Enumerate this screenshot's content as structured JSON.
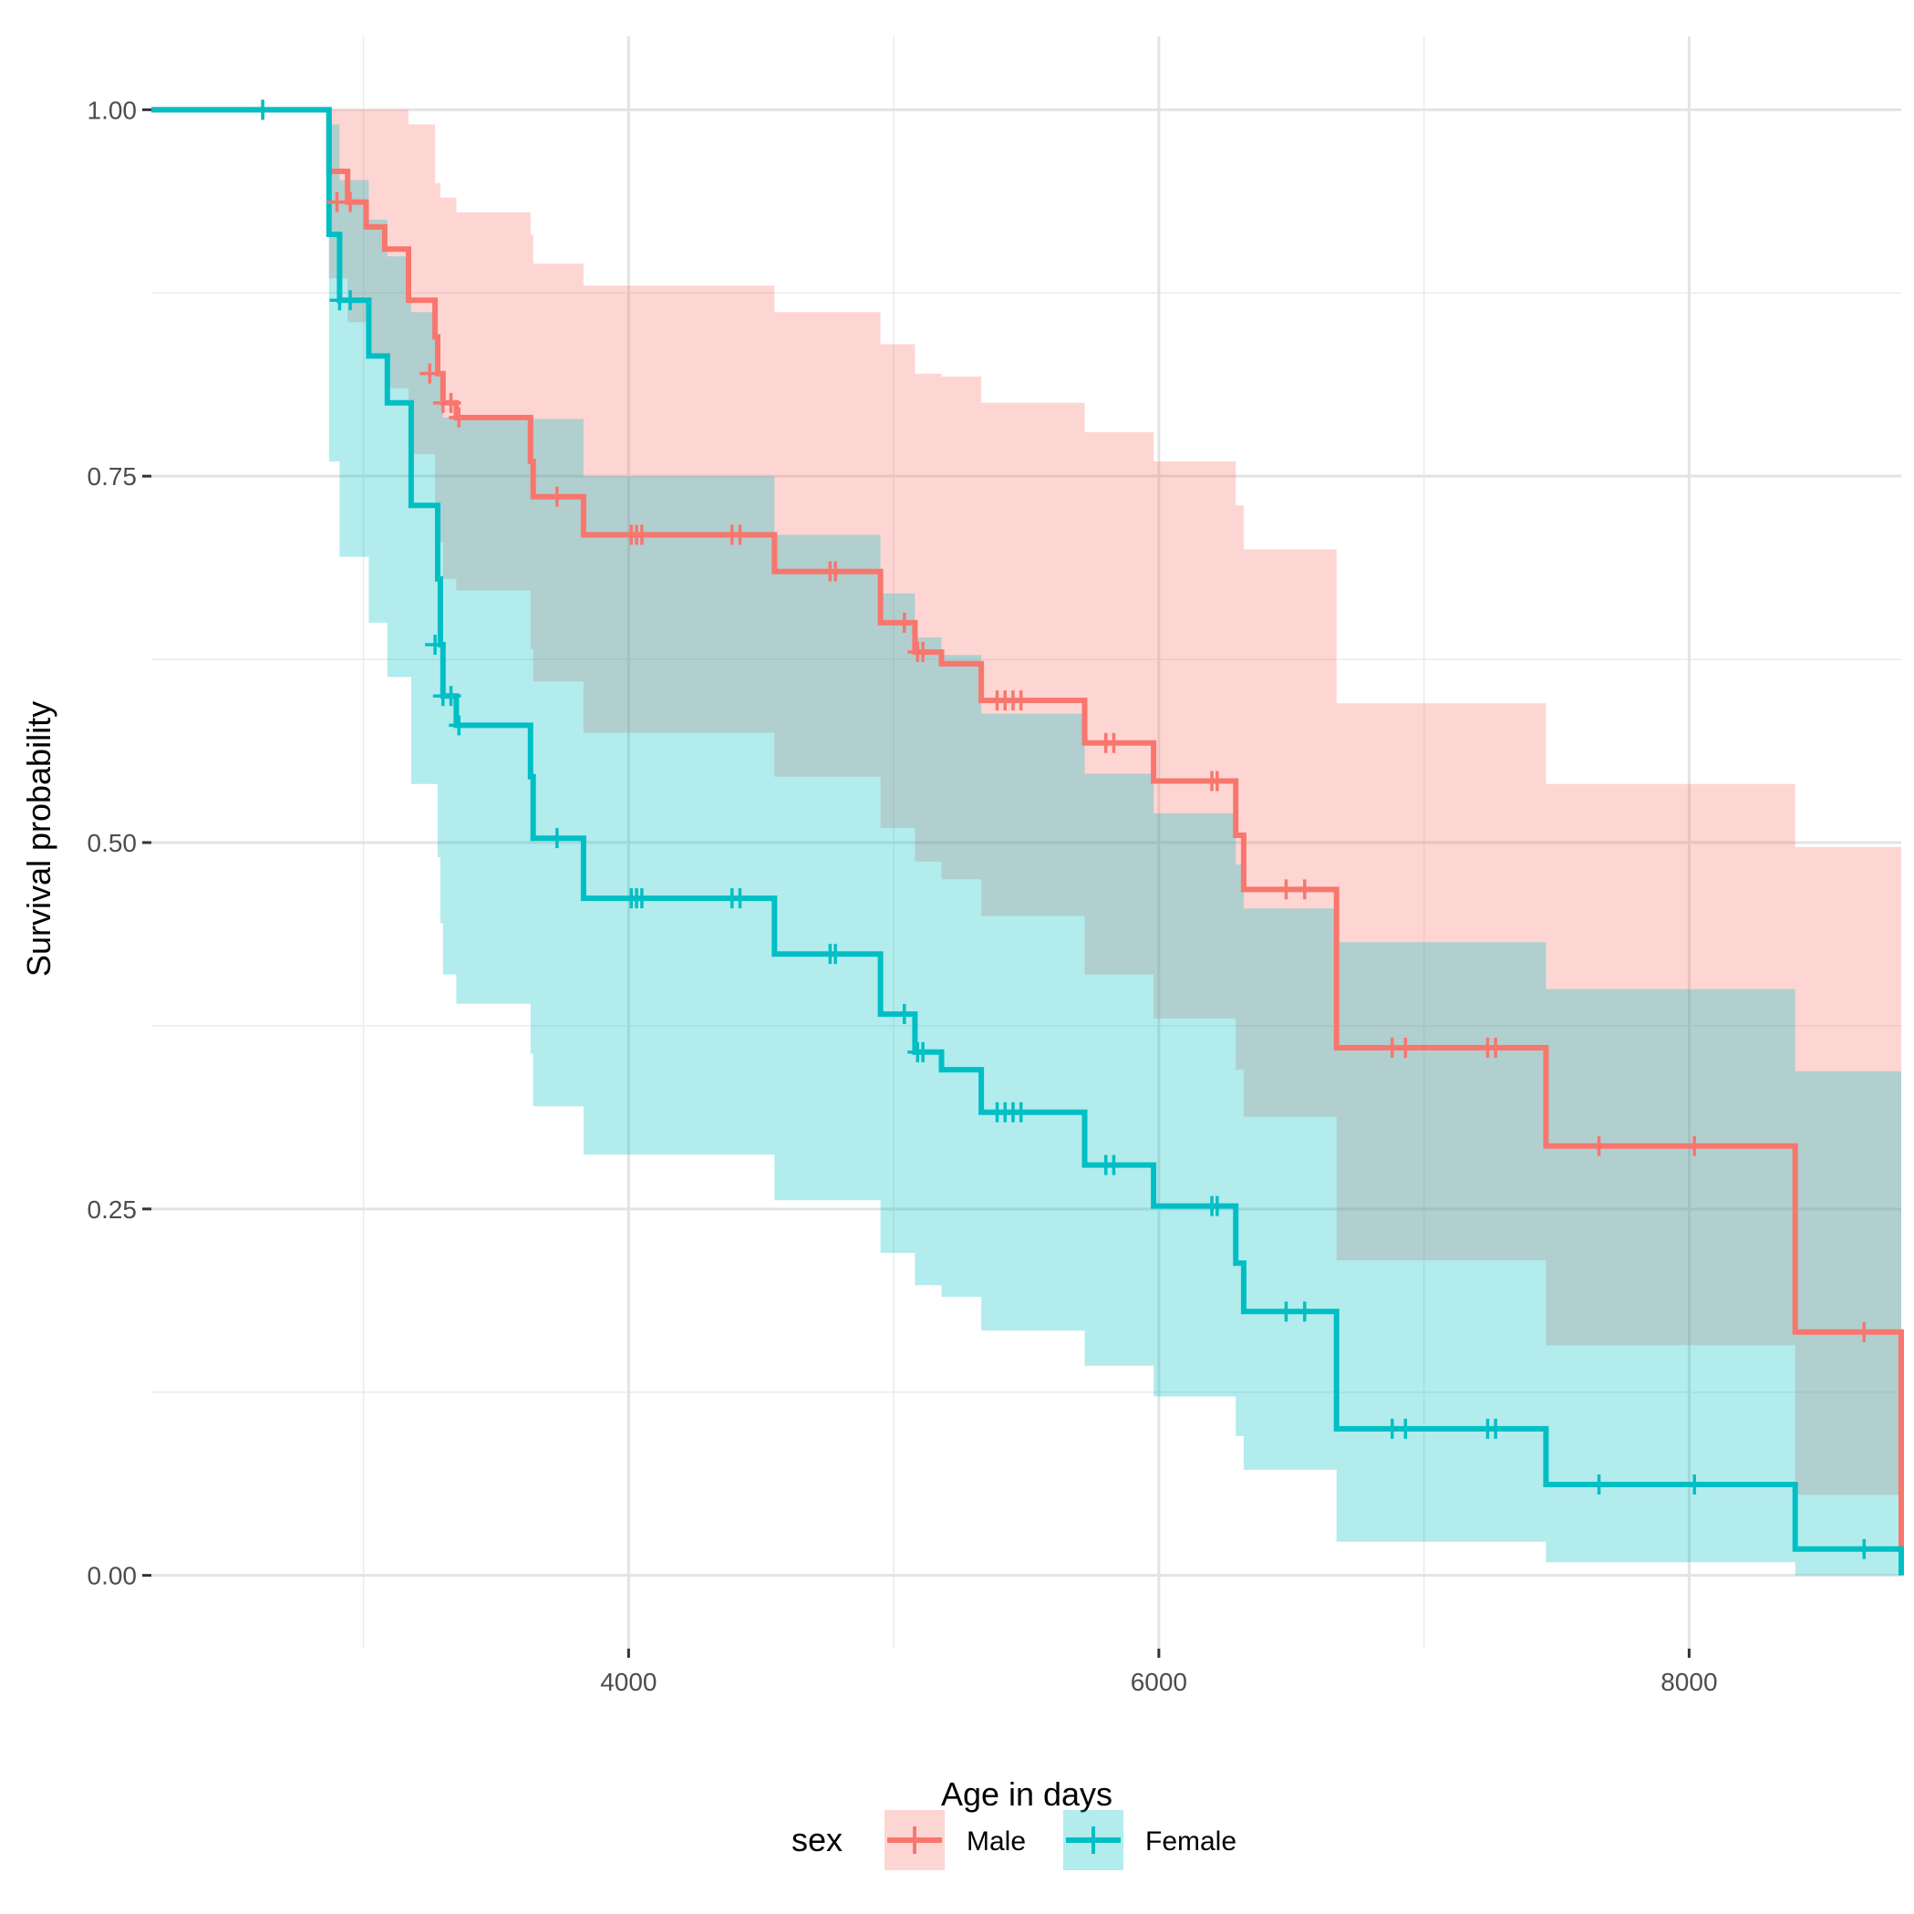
{
  "chart_data": {
    "type": "line",
    "subtype": "kaplan-meier-survival",
    "title": "",
    "xlabel": "Age in days",
    "ylabel": "Survival probability",
    "xlim": [
      2200,
      8800
    ],
    "ylim": [
      -0.05,
      1.05
    ],
    "x_ticks": [
      4000,
      6000,
      8000
    ],
    "x_tick_labels": [
      "4000",
      "6000",
      "8000"
    ],
    "y_ticks": [
      0,
      0.25,
      0.5,
      0.75,
      1.0
    ],
    "y_tick_labels": [
      "0.00",
      "0.25",
      "0.50",
      "0.75",
      "1.00"
    ],
    "grid": true,
    "legend": {
      "title": "sex",
      "position": "bottom",
      "entries": [
        "Male",
        "Female"
      ]
    },
    "series": [
      {
        "name": "Male",
        "color": "#F8766D",
        "steps": [
          {
            "x": 2200,
            "y": 1.0
          },
          {
            "x": 2870,
            "y": 0.958
          },
          {
            "x": 2940,
            "y": 0.937
          },
          {
            "x": 3010,
            "y": 0.92
          },
          {
            "x": 3080,
            "y": 0.905
          },
          {
            "x": 3170,
            "y": 0.87
          },
          {
            "x": 3270,
            "y": 0.845
          },
          {
            "x": 3280,
            "y": 0.82
          },
          {
            "x": 3300,
            "y": 0.8
          },
          {
            "x": 3350,
            "y": 0.79
          },
          {
            "x": 3630,
            "y": 0.76
          },
          {
            "x": 3640,
            "y": 0.736
          },
          {
            "x": 3830,
            "y": 0.71
          },
          {
            "x": 4550,
            "y": 0.685
          },
          {
            "x": 4950,
            "y": 0.65
          },
          {
            "x": 5080,
            "y": 0.63
          },
          {
            "x": 5180,
            "y": 0.622
          },
          {
            "x": 5330,
            "y": 0.597
          },
          {
            "x": 5720,
            "y": 0.568
          },
          {
            "x": 5980,
            "y": 0.542
          },
          {
            "x": 6290,
            "y": 0.505
          },
          {
            "x": 6320,
            "y": 0.468
          },
          {
            "x": 6670,
            "y": 0.36
          },
          {
            "x": 7460,
            "y": 0.293
          },
          {
            "x": 8400,
            "y": 0.166
          },
          {
            "x": 8800,
            "y": 0.0
          }
        ],
        "ci_upper": [
          {
            "x": 2200,
            "y": 1.0
          },
          {
            "x": 3080,
            "y": 1.0
          },
          {
            "x": 3170,
            "y": 0.99
          },
          {
            "x": 3270,
            "y": 0.95
          },
          {
            "x": 3290,
            "y": 0.94
          },
          {
            "x": 3350,
            "y": 0.93
          },
          {
            "x": 3630,
            "y": 0.915
          },
          {
            "x": 3640,
            "y": 0.895
          },
          {
            "x": 3830,
            "y": 0.88
          },
          {
            "x": 4550,
            "y": 0.862
          },
          {
            "x": 4950,
            "y": 0.84
          },
          {
            "x": 5080,
            "y": 0.82
          },
          {
            "x": 5180,
            "y": 0.818
          },
          {
            "x": 5330,
            "y": 0.8
          },
          {
            "x": 5720,
            "y": 0.78
          },
          {
            "x": 5980,
            "y": 0.76
          },
          {
            "x": 6290,
            "y": 0.73
          },
          {
            "x": 6320,
            "y": 0.7
          },
          {
            "x": 6670,
            "y": 0.595
          },
          {
            "x": 7460,
            "y": 0.54
          },
          {
            "x": 8400,
            "y": 0.497
          },
          {
            "x": 8800,
            "y": 0.497
          }
        ],
        "ci_lower": [
          {
            "x": 2200,
            "y": 1.0
          },
          {
            "x": 2870,
            "y": 0.885
          },
          {
            "x": 2940,
            "y": 0.855
          },
          {
            "x": 3010,
            "y": 0.832
          },
          {
            "x": 3080,
            "y": 0.81
          },
          {
            "x": 3170,
            "y": 0.765
          },
          {
            "x": 3270,
            "y": 0.72
          },
          {
            "x": 3280,
            "y": 0.705
          },
          {
            "x": 3300,
            "y": 0.68
          },
          {
            "x": 3350,
            "y": 0.672
          },
          {
            "x": 3630,
            "y": 0.632
          },
          {
            "x": 3640,
            "y": 0.61
          },
          {
            "x": 3830,
            "y": 0.575
          },
          {
            "x": 4550,
            "y": 0.545
          },
          {
            "x": 4950,
            "y": 0.51
          },
          {
            "x": 5080,
            "y": 0.487
          },
          {
            "x": 5180,
            "y": 0.475
          },
          {
            "x": 5330,
            "y": 0.45
          },
          {
            "x": 5720,
            "y": 0.41
          },
          {
            "x": 5980,
            "y": 0.38
          },
          {
            "x": 6290,
            "y": 0.345
          },
          {
            "x": 6320,
            "y": 0.313
          },
          {
            "x": 6670,
            "y": 0.215
          },
          {
            "x": 7460,
            "y": 0.157
          },
          {
            "x": 8400,
            "y": 0.055
          },
          {
            "x": 8800,
            "y": 0.055
          }
        ],
        "censored": [
          {
            "x": 2620,
            "y": 1.0
          },
          {
            "x": 2900,
            "y": 0.937
          },
          {
            "x": 2950,
            "y": 0.937
          },
          {
            "x": 3250,
            "y": 0.82
          },
          {
            "x": 3300,
            "y": 0.8
          },
          {
            "x": 3330,
            "y": 0.8
          },
          {
            "x": 3360,
            "y": 0.79
          },
          {
            "x": 3730,
            "y": 0.736
          },
          {
            "x": 4010,
            "y": 0.71
          },
          {
            "x": 4030,
            "y": 0.71
          },
          {
            "x": 4050,
            "y": 0.71
          },
          {
            "x": 4390,
            "y": 0.71
          },
          {
            "x": 4420,
            "y": 0.71
          },
          {
            "x": 4760,
            "y": 0.685
          },
          {
            "x": 4780,
            "y": 0.685
          },
          {
            "x": 5040,
            "y": 0.65
          },
          {
            "x": 5090,
            "y": 0.63
          },
          {
            "x": 5110,
            "y": 0.63
          },
          {
            "x": 5390,
            "y": 0.597
          },
          {
            "x": 5420,
            "y": 0.597
          },
          {
            "x": 5450,
            "y": 0.597
          },
          {
            "x": 5480,
            "y": 0.597
          },
          {
            "x": 5800,
            "y": 0.568
          },
          {
            "x": 5830,
            "y": 0.568
          },
          {
            "x": 6200,
            "y": 0.542
          },
          {
            "x": 6220,
            "y": 0.542
          },
          {
            "x": 6480,
            "y": 0.468
          },
          {
            "x": 6550,
            "y": 0.468
          },
          {
            "x": 6880,
            "y": 0.36
          },
          {
            "x": 6930,
            "y": 0.36
          },
          {
            "x": 7240,
            "y": 0.36
          },
          {
            "x": 7270,
            "y": 0.36
          },
          {
            "x": 7660,
            "y": 0.293
          },
          {
            "x": 8020,
            "y": 0.293
          },
          {
            "x": 8660,
            "y": 0.166
          }
        ]
      },
      {
        "name": "Female",
        "color": "#00BFC4",
        "steps": [
          {
            "x": 2200,
            "y": 1.0
          },
          {
            "x": 2870,
            "y": 0.915
          },
          {
            "x": 2910,
            "y": 0.87
          },
          {
            "x": 3020,
            "y": 0.832
          },
          {
            "x": 3090,
            "y": 0.8
          },
          {
            "x": 3180,
            "y": 0.73
          },
          {
            "x": 3280,
            "y": 0.68
          },
          {
            "x": 3290,
            "y": 0.635
          },
          {
            "x": 3300,
            "y": 0.6
          },
          {
            "x": 3350,
            "y": 0.58
          },
          {
            "x": 3630,
            "y": 0.545
          },
          {
            "x": 3640,
            "y": 0.503
          },
          {
            "x": 3830,
            "y": 0.462
          },
          {
            "x": 4550,
            "y": 0.424
          },
          {
            "x": 4950,
            "y": 0.383
          },
          {
            "x": 5080,
            "y": 0.357
          },
          {
            "x": 5180,
            "y": 0.345
          },
          {
            "x": 5330,
            "y": 0.316
          },
          {
            "x": 5720,
            "y": 0.28
          },
          {
            "x": 5980,
            "y": 0.252
          },
          {
            "x": 6290,
            "y": 0.213
          },
          {
            "x": 6320,
            "y": 0.18
          },
          {
            "x": 6670,
            "y": 0.1
          },
          {
            "x": 7460,
            "y": 0.062
          },
          {
            "x": 8400,
            "y": 0.018
          },
          {
            "x": 8800,
            "y": 0.0
          }
        ],
        "ci_upper": [
          {
            "x": 2200,
            "y": 1.0
          },
          {
            "x": 2870,
            "y": 0.99
          },
          {
            "x": 2910,
            "y": 0.952
          },
          {
            "x": 3020,
            "y": 0.925
          },
          {
            "x": 3090,
            "y": 0.9
          },
          {
            "x": 3180,
            "y": 0.862
          },
          {
            "x": 3280,
            "y": 0.825
          },
          {
            "x": 3290,
            "y": 0.8
          },
          {
            "x": 3300,
            "y": 0.79
          },
          {
            "x": 3350,
            "y": 0.789
          },
          {
            "x": 3630,
            "y": 0.789
          },
          {
            "x": 3640,
            "y": 0.789
          },
          {
            "x": 3830,
            "y": 0.75
          },
          {
            "x": 4550,
            "y": 0.71
          },
          {
            "x": 4950,
            "y": 0.67
          },
          {
            "x": 5080,
            "y": 0.64
          },
          {
            "x": 5180,
            "y": 0.628
          },
          {
            "x": 5330,
            "y": 0.588
          },
          {
            "x": 5720,
            "y": 0.547
          },
          {
            "x": 5980,
            "y": 0.52
          },
          {
            "x": 6290,
            "y": 0.485
          },
          {
            "x": 6320,
            "y": 0.455
          },
          {
            "x": 6670,
            "y": 0.432
          },
          {
            "x": 7460,
            "y": 0.4
          },
          {
            "x": 8400,
            "y": 0.344
          },
          {
            "x": 8800,
            "y": 0.344
          }
        ],
        "ci_lower": [
          {
            "x": 2200,
            "y": 1.0
          },
          {
            "x": 2870,
            "y": 0.76
          },
          {
            "x": 2910,
            "y": 0.695
          },
          {
            "x": 3020,
            "y": 0.65
          },
          {
            "x": 3090,
            "y": 0.613
          },
          {
            "x": 3180,
            "y": 0.54
          },
          {
            "x": 3280,
            "y": 0.49
          },
          {
            "x": 3290,
            "y": 0.445
          },
          {
            "x": 3300,
            "y": 0.41
          },
          {
            "x": 3350,
            "y": 0.39
          },
          {
            "x": 3630,
            "y": 0.356
          },
          {
            "x": 3640,
            "y": 0.32
          },
          {
            "x": 3830,
            "y": 0.287
          },
          {
            "x": 4550,
            "y": 0.256
          },
          {
            "x": 4950,
            "y": 0.22
          },
          {
            "x": 5080,
            "y": 0.198
          },
          {
            "x": 5180,
            "y": 0.19
          },
          {
            "x": 5330,
            "y": 0.167
          },
          {
            "x": 5720,
            "y": 0.143
          },
          {
            "x": 5980,
            "y": 0.122
          },
          {
            "x": 6290,
            "y": 0.095
          },
          {
            "x": 6320,
            "y": 0.072
          },
          {
            "x": 6670,
            "y": 0.023
          },
          {
            "x": 7460,
            "y": 0.009
          },
          {
            "x": 8400,
            "y": 0.0
          },
          {
            "x": 8800,
            "y": 0.0
          }
        ],
        "censored": [
          {
            "x": 2620,
            "y": 1.0
          },
          {
            "x": 2910,
            "y": 0.87
          },
          {
            "x": 2950,
            "y": 0.87
          },
          {
            "x": 3270,
            "y": 0.635
          },
          {
            "x": 3300,
            "y": 0.6
          },
          {
            "x": 3330,
            "y": 0.6
          },
          {
            "x": 3360,
            "y": 0.58
          },
          {
            "x": 3730,
            "y": 0.503
          },
          {
            "x": 4010,
            "y": 0.462
          },
          {
            "x": 4030,
            "y": 0.462
          },
          {
            "x": 4050,
            "y": 0.462
          },
          {
            "x": 4390,
            "y": 0.462
          },
          {
            "x": 4420,
            "y": 0.462
          },
          {
            "x": 4760,
            "y": 0.424
          },
          {
            "x": 4780,
            "y": 0.424
          },
          {
            "x": 5040,
            "y": 0.383
          },
          {
            "x": 5090,
            "y": 0.357
          },
          {
            "x": 5110,
            "y": 0.357
          },
          {
            "x": 5390,
            "y": 0.316
          },
          {
            "x": 5420,
            "y": 0.316
          },
          {
            "x": 5450,
            "y": 0.316
          },
          {
            "x": 5480,
            "y": 0.316
          },
          {
            "x": 5800,
            "y": 0.28
          },
          {
            "x": 5830,
            "y": 0.28
          },
          {
            "x": 6200,
            "y": 0.252
          },
          {
            "x": 6220,
            "y": 0.252
          },
          {
            "x": 6480,
            "y": 0.18
          },
          {
            "x": 6550,
            "y": 0.18
          },
          {
            "x": 6880,
            "y": 0.1
          },
          {
            "x": 6930,
            "y": 0.1
          },
          {
            "x": 7240,
            "y": 0.1
          },
          {
            "x": 7270,
            "y": 0.1
          },
          {
            "x": 7660,
            "y": 0.062
          },
          {
            "x": 8020,
            "y": 0.062
          },
          {
            "x": 8660,
            "y": 0.018
          }
        ]
      }
    ]
  }
}
